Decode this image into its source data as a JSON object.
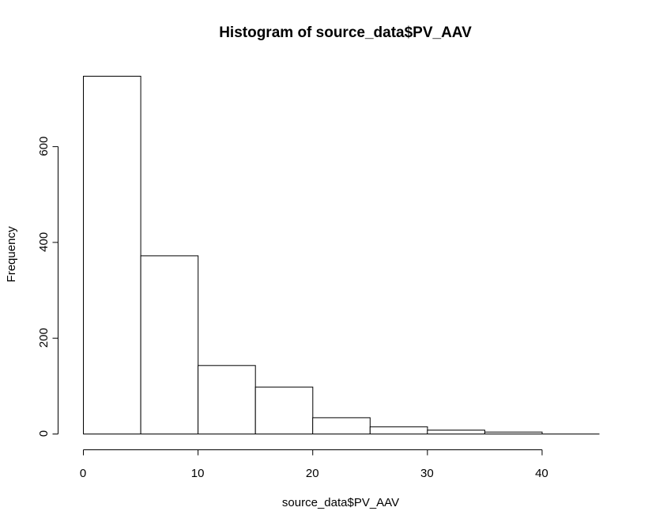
{
  "chart_data": {
    "type": "bar",
    "title": "Histogram of source_data$PV_AAV",
    "xlabel": "source_data$PV_AAV",
    "ylabel": "Frequency",
    "bin_edges": [
      0,
      5,
      10,
      15,
      20,
      25,
      30,
      35,
      40,
      45
    ],
    "values": [
      747,
      372,
      143,
      98,
      34,
      15,
      8,
      4,
      0
    ],
    "xlim": [
      0,
      45
    ],
    "ylim": [
      0,
      747
    ],
    "x_ticks": [
      0,
      10,
      20,
      30,
      40
    ],
    "y_ticks": [
      0,
      200,
      400,
      600
    ],
    "x_tick_labels": [
      "0",
      "10",
      "20",
      "30",
      "40"
    ],
    "y_tick_labels": [
      "0",
      "200",
      "400",
      "600"
    ],
    "grid": false,
    "legend": "none",
    "bar_fill": "#ffffff",
    "bar_stroke": "#000000"
  }
}
